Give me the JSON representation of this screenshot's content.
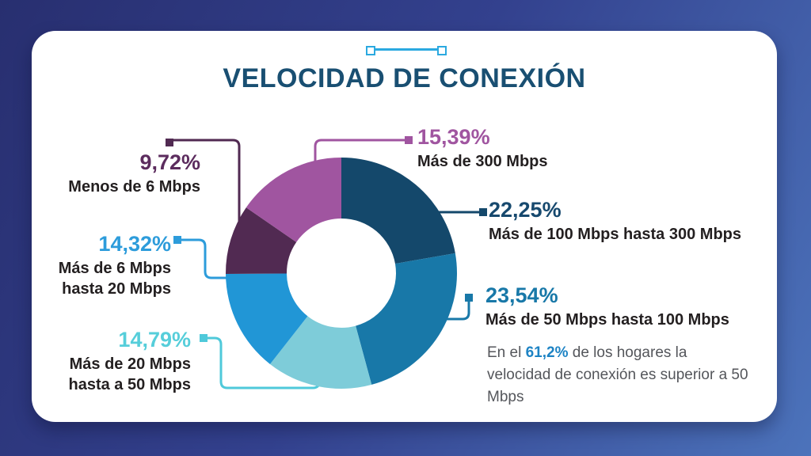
{
  "colors": {
    "background_top_left": "#282F70",
    "background_bottom_right": "#4C73BB",
    "card": "#FFFFFF",
    "title": "#194F72",
    "label_text": "#231F20",
    "note_text": "#54565B",
    "note_highlight": "#1D83C4",
    "decoration": "#2BA9E0"
  },
  "chart_data": {
    "type": "pie",
    "variant": "donut",
    "title": "VELOCIDAD DE CONEXIÓN",
    "unit": "%",
    "start_angle_deg": 0,
    "direction": "clockwise",
    "legend_position": "callout-labels",
    "segments": [
      {
        "label": "Más de 100 Mbps hasta 300 Mbps",
        "value": 22.25,
        "color": "#14486B"
      },
      {
        "label": "Más de 50 Mbps hasta 100 Mbps",
        "value": 23.54,
        "color": "#1878A8"
      },
      {
        "label": "Más de 20 Mbps hasta a 50 Mbps",
        "value": 14.79,
        "color": "#7ECCD9"
      },
      {
        "label": "Más de 6 Mbps hasta 20 Mbps",
        "value": 14.32,
        "color": "#2196D6"
      },
      {
        "label": "Menos de 6 Mbps",
        "value": 9.72,
        "color": "#512A52"
      },
      {
        "label": "Más de 300 Mbps",
        "value": 15.39,
        "color": "#A055A0"
      }
    ]
  },
  "callouts": [
    {
      "pct": "15,39%",
      "name": "Más de 300 Mbps",
      "color": "#A055A0",
      "line": "#A055A0"
    },
    {
      "pct": "22,25%",
      "name": "Más de 100 Mbps hasta 300 Mbps",
      "color": "#17496E",
      "line": "#14486B"
    },
    {
      "pct": "23,54%",
      "name": "Más de 50 Mbps hasta 100 Mbps",
      "color": "#1878A8",
      "line": "#1878A8"
    },
    {
      "pct": "9,72%",
      "name": "Menos de 6 Mbps",
      "color": "#5C2C5E",
      "line": "#512A52"
    },
    {
      "pct": "14,32%",
      "name": "Más de 6 Mbps\nhasta 20 Mbps",
      "color": "#2D9CDB",
      "line": "#2D9CDB",
      "end_dot": "#1B7FB8"
    },
    {
      "pct": "14,79%",
      "name": "Más de 20 Mbps\nhasta a 50 Mbps",
      "color": "#56CEDA",
      "line": "#4FC9DA",
      "end_dot": "#45BCCE"
    }
  ],
  "note": {
    "prefix": "En el ",
    "highlight": "61,2%",
    "suffix": " de los hogares la velocidad de conexión es superior a 50 Mbps"
  }
}
